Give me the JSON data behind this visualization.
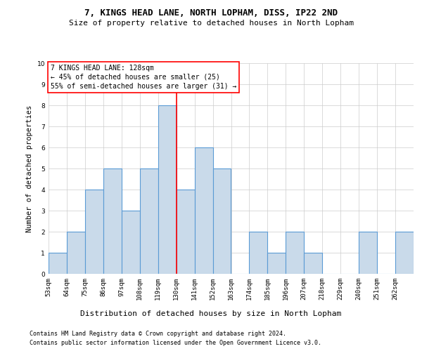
{
  "title1": "7, KINGS HEAD LANE, NORTH LOPHAM, DISS, IP22 2ND",
  "title2": "Size of property relative to detached houses in North Lopham",
  "xlabel": "Distribution of detached houses by size in North Lopham",
  "ylabel": "Number of detached properties",
  "bin_edges": [
    53,
    64,
    75,
    86,
    97,
    108,
    119,
    130,
    141,
    152,
    163,
    174,
    185,
    196,
    207,
    218,
    229,
    240,
    251,
    262,
    273
  ],
  "bar_heights": [
    1,
    2,
    4,
    5,
    3,
    5,
    8,
    4,
    6,
    5,
    0,
    2,
    1,
    2,
    1,
    0,
    0,
    2,
    0,
    2
  ],
  "bar_facecolor": "#c9daea",
  "bar_edgecolor": "#5b9bd5",
  "bar_linewidth": 0.8,
  "vline_x": 130,
  "vline_color": "red",
  "vline_linewidth": 1.2,
  "ylim": [
    0,
    10
  ],
  "yticks": [
    0,
    1,
    2,
    3,
    4,
    5,
    6,
    7,
    8,
    9,
    10
  ],
  "grid_color": "#cccccc",
  "background_color": "#ffffff",
  "annotation_text": "7 KINGS HEAD LANE: 128sqm\n← 45% of detached houses are smaller (25)\n55% of semi-detached houses are larger (31) →",
  "annotation_box_edgecolor": "red",
  "footer_line1": "Contains HM Land Registry data © Crown copyright and database right 2024.",
  "footer_line2": "Contains public sector information licensed under the Open Government Licence v3.0.",
  "title1_fontsize": 9,
  "title2_fontsize": 8,
  "xlabel_fontsize": 8,
  "ylabel_fontsize": 7.5,
  "tick_fontsize": 6.5,
  "annotation_fontsize": 7,
  "footer_fontsize": 6
}
